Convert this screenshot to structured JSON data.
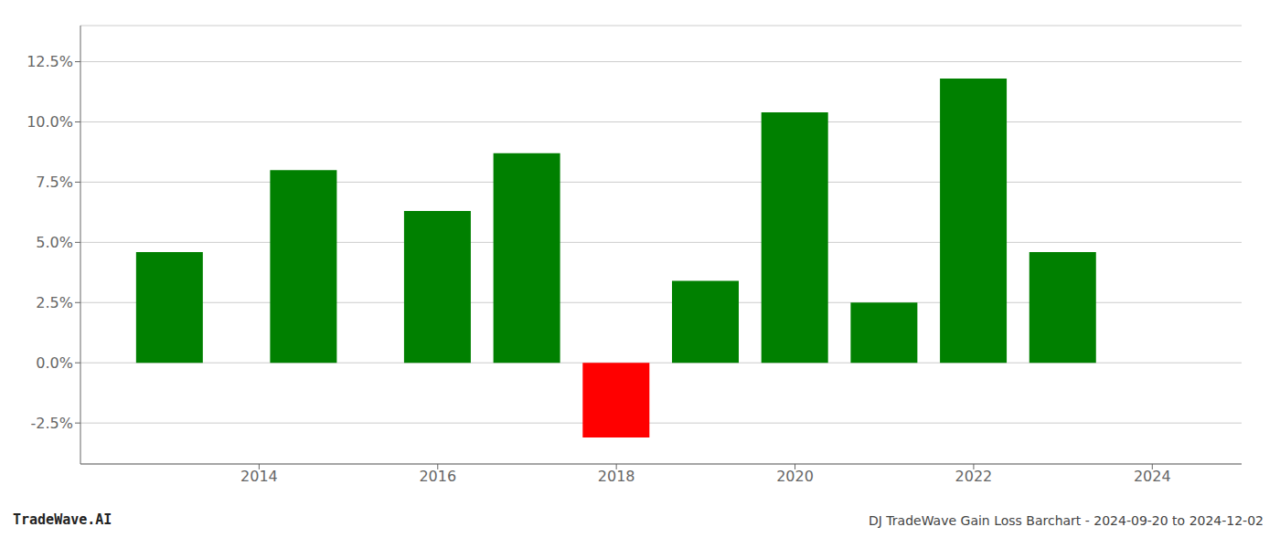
{
  "chart_data": {
    "type": "bar",
    "title": "DJ TradeWave Gain Loss Barchart - 2024-09-20 to 2024-12-02",
    "annotations": [
      "TradeWave.AI"
    ],
    "x": [
      2013,
      2014.5,
      2016,
      2017,
      2018,
      2019,
      2020,
      2021,
      2022,
      2023
    ],
    "values": [
      4.6,
      8.0,
      6.3,
      8.7,
      -3.1,
      3.4,
      10.4,
      2.5,
      11.8,
      4.6
    ],
    "colors": [
      "#008000",
      "#008000",
      "#008000",
      "#008000",
      "#ff0000",
      "#008000",
      "#008000",
      "#008000",
      "#008000",
      "#008000"
    ],
    "xlim": [
      2012.0,
      2025.0
    ],
    "ylim": [
      -4.2,
      14.0
    ],
    "xticks": [
      2014,
      2016,
      2018,
      2020,
      2022,
      2024
    ],
    "yticks": [
      {
        "value": -2.5,
        "label": "-2.5%"
      },
      {
        "value": 0.0,
        "label": "0.0%"
      },
      {
        "value": 2.5,
        "label": "2.5%"
      },
      {
        "value": 5.0,
        "label": "5.0%"
      },
      {
        "value": 7.5,
        "label": "7.5%"
      },
      {
        "value": 10.0,
        "label": "10.0%"
      },
      {
        "value": 12.5,
        "label": "12.5%"
      }
    ],
    "grid": true
  }
}
